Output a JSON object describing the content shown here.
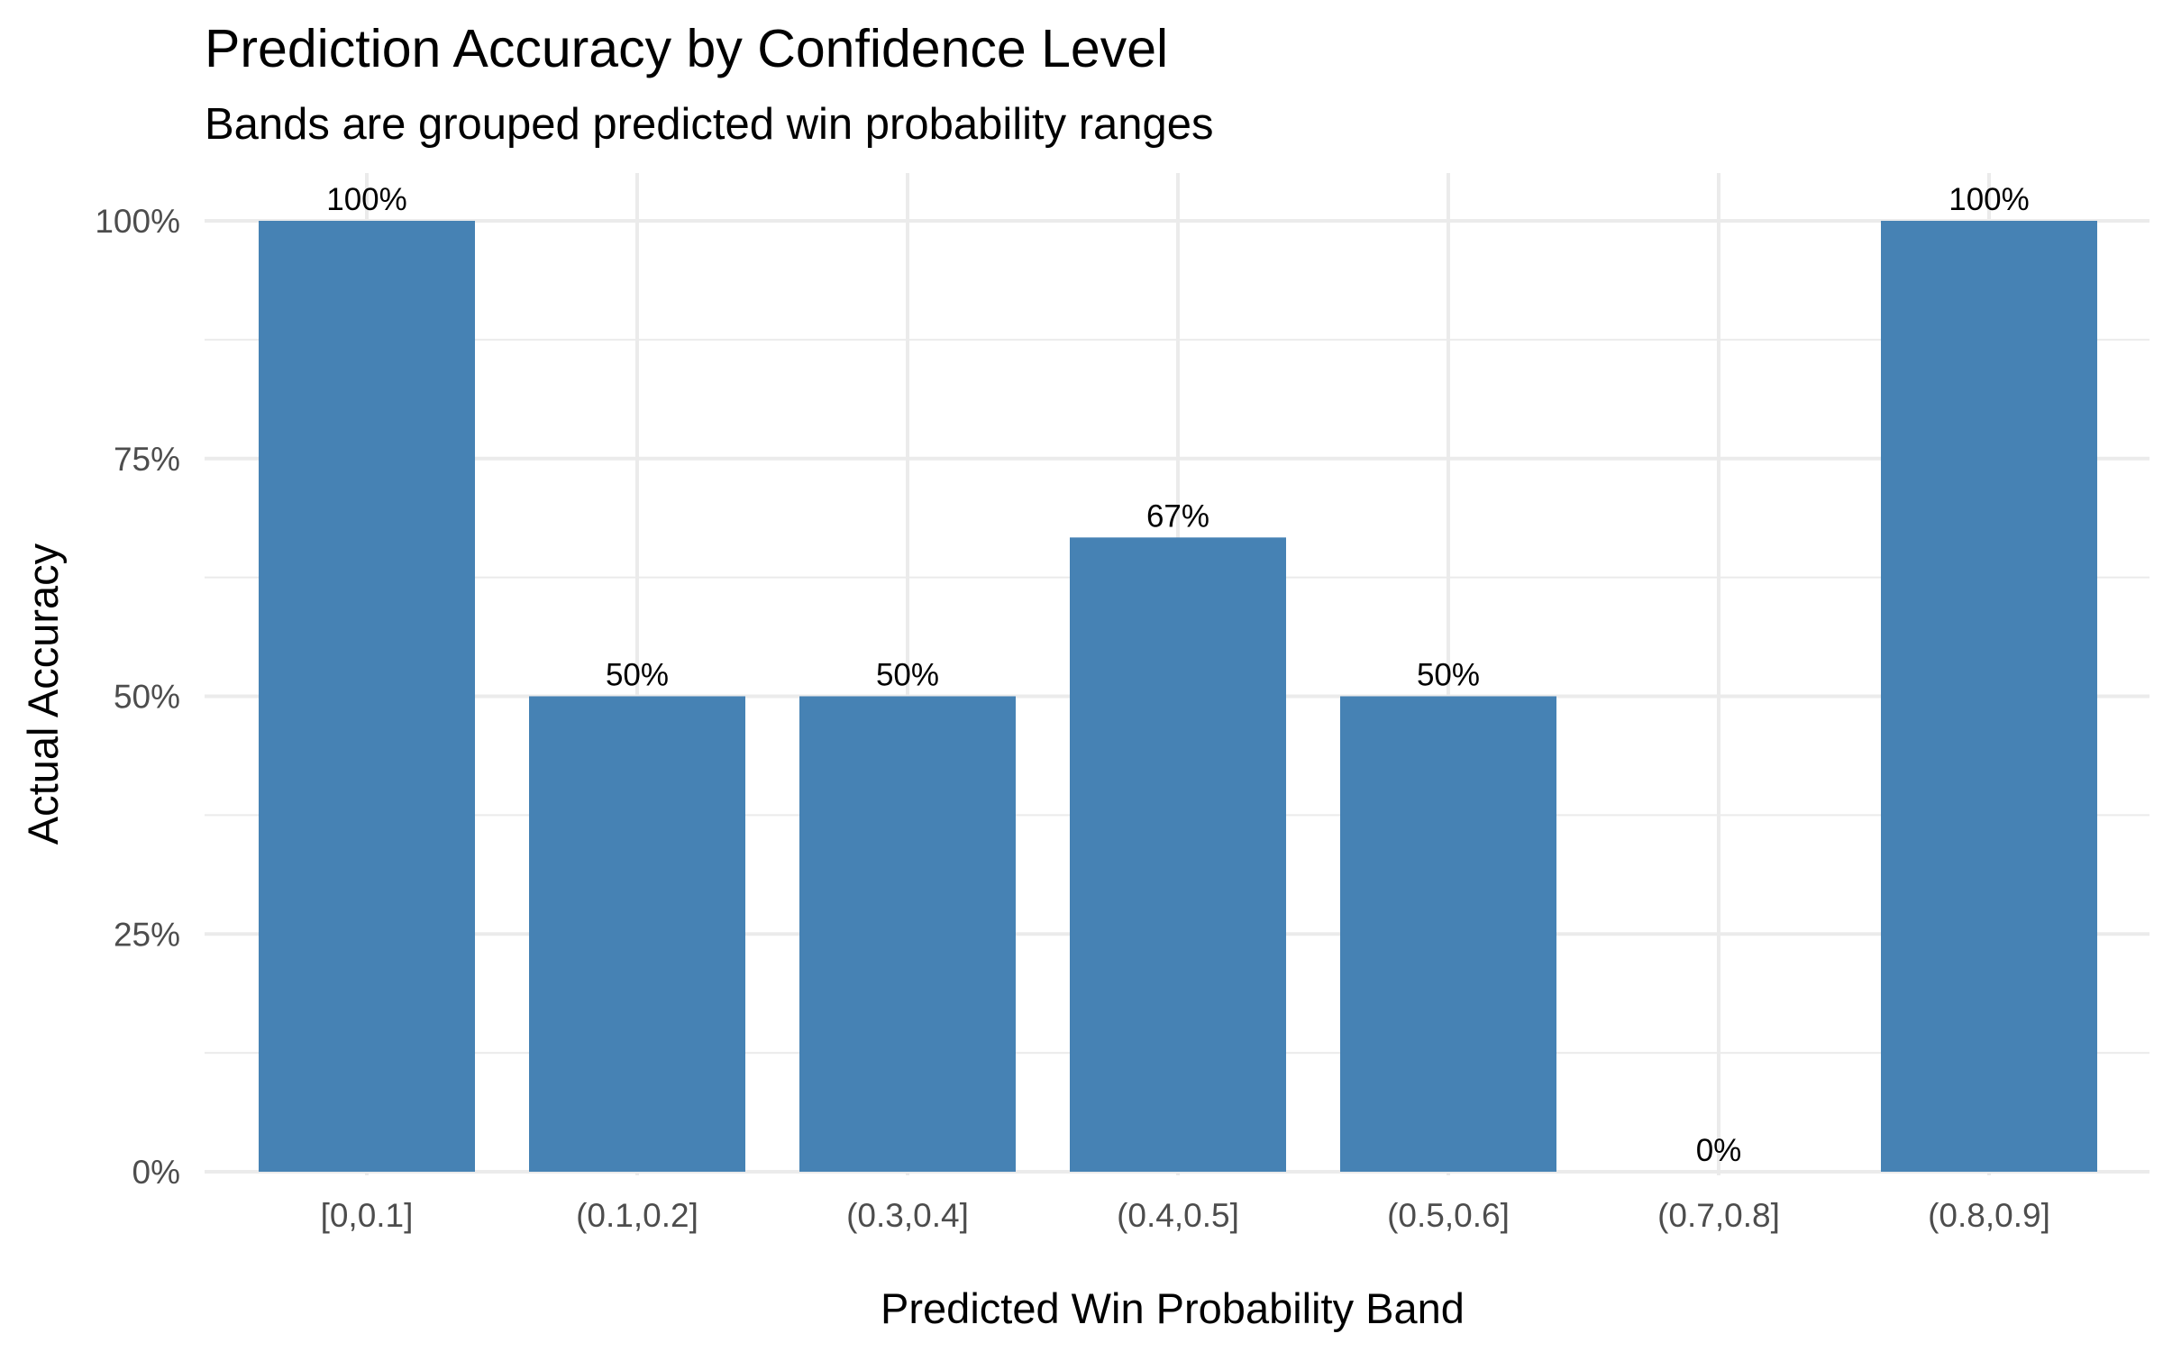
{
  "chart_data": {
    "type": "bar",
    "title": "Prediction Accuracy by Confidence Level",
    "subtitle": "Bands are grouped predicted win probability ranges",
    "xlabel": "Predicted Win Probability Band",
    "ylabel": "Actual Accuracy",
    "categories": [
      "[0,0.1]",
      "(0.1,0.2]",
      "(0.3,0.4]",
      "(0.4,0.5]",
      "(0.5,0.6]",
      "(0.7,0.8]",
      "(0.8,0.9]"
    ],
    "values": [
      100,
      50,
      50,
      66.7,
      50,
      0,
      100
    ],
    "data_labels": [
      "100%",
      "50%",
      "50%",
      "67%",
      "50%",
      "0%",
      "100%"
    ],
    "y_ticks": [
      0,
      25,
      50,
      75,
      100
    ],
    "y_tick_labels": [
      "0%",
      "25%",
      "50%",
      "75%",
      "100%"
    ],
    "ylim": [
      0,
      100
    ],
    "grid": true,
    "legend": "none",
    "bar_color": "#4682b4",
    "grid_color": "#ebebeb"
  }
}
